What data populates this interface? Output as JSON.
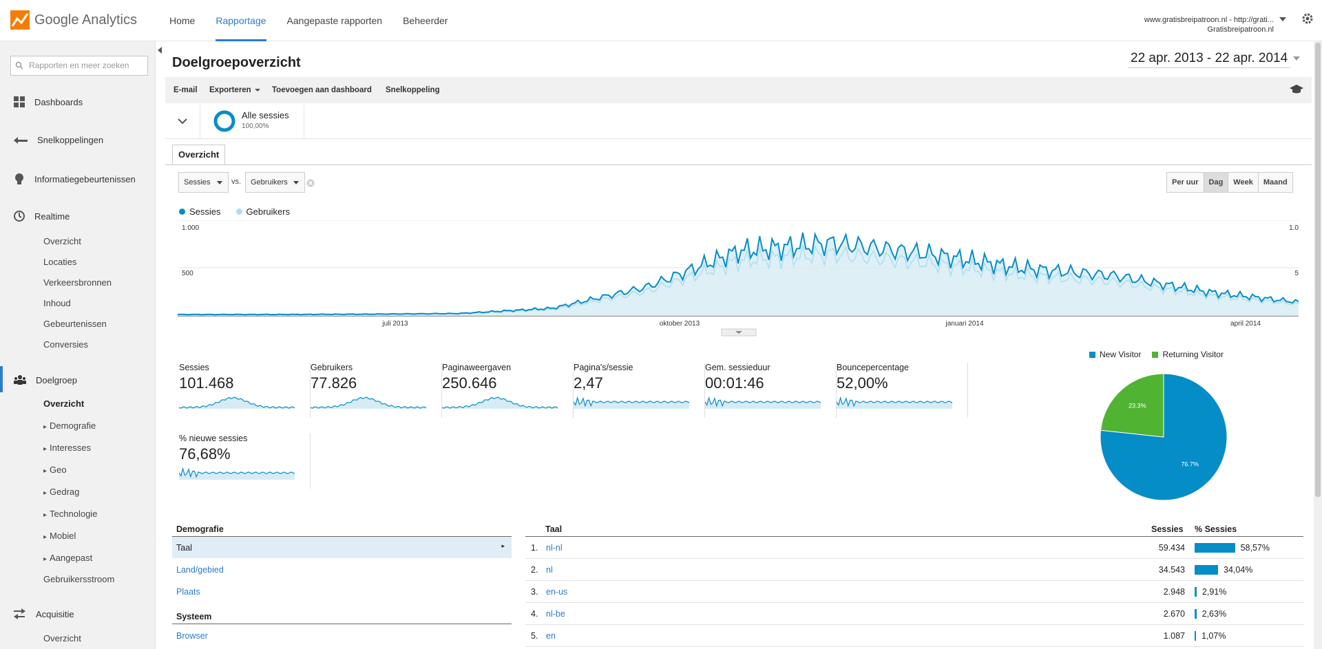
{
  "app": {
    "name": "Google Analytics"
  },
  "nav": {
    "items": [
      "Home",
      "Rapportage",
      "Aangepaste rapporten",
      "Beheerder"
    ],
    "active": "Rapportage"
  },
  "account": {
    "line1": "www.gratisbreipatroon.nl - http://grati...",
    "line2": "Gratisbreipatroon.nl"
  },
  "search": {
    "placeholder": "Rapporten en meer zoeken"
  },
  "sidebar": {
    "dashboards": "Dashboards",
    "shortcuts": "Snelkoppelingen",
    "events": "Informatiegebeurtenissen",
    "realtime": "Realtime",
    "realtime_items": [
      "Overzicht",
      "Locaties",
      "Verkeersbronnen",
      "Inhoud",
      "Gebeurtenissen",
      "Conversies"
    ],
    "audience": "Doelgroep",
    "audience_items": [
      "Overzicht",
      "Demografie",
      "Interesses",
      "Geo",
      "Gedrag",
      "Technologie",
      "Mobiel",
      "Aangepast",
      "Gebruikersstroom"
    ],
    "acquisition": "Acquisitie",
    "acquisition_items": [
      "Overzicht"
    ]
  },
  "page": {
    "title": "Doelgroepoverzicht",
    "daterange": "22 apr. 2013 - 22 apr. 2014"
  },
  "toolbar": {
    "email": "E-mail",
    "export": "Exporteren",
    "add_dashboard": "Toevoegen aan dashboard",
    "shortcut": "Snelkoppeling"
  },
  "segment": {
    "name": "Alle sessies",
    "pct": "100,00%"
  },
  "tab": {
    "overview": "Overzicht"
  },
  "compare": {
    "metric1": "Sessies",
    "vs": "vs.",
    "metric2": "Gebruikers"
  },
  "granularity": {
    "items": [
      "Per uur",
      "Dag",
      "Week",
      "Maand"
    ],
    "active": "Dag"
  },
  "chart_data": [
    {
      "type": "line",
      "series": [
        {
          "name": "Sessies",
          "color": "#058dc7"
        },
        {
          "name": "Gebruikers",
          "color": "#aadff3"
        }
      ],
      "x_ticks": [
        "juli 2013",
        "oktober 2013",
        "januari 2014",
        "april 2014"
      ],
      "y_ticks_left": [
        "1.000",
        "500"
      ],
      "y_ticks_right": [
        "1.0",
        "5"
      ],
      "x_range": [
        "2013-04-22",
        "2014-04-22"
      ],
      "ylim": [
        0,
        1000
      ],
      "sessies_monthly": [
        {
          "x": "2013-04",
          "y": 15
        },
        {
          "x": "2013-05",
          "y": 15
        },
        {
          "x": "2013-06",
          "y": 18
        },
        {
          "x": "2013-07",
          "y": 25
        },
        {
          "x": "2013-08",
          "y": 80
        },
        {
          "x": "2013-09",
          "y": 300
        },
        {
          "x": "2013-10",
          "y": 680
        },
        {
          "x": "2013-11",
          "y": 760
        },
        {
          "x": "2013-12",
          "y": 650
        },
        {
          "x": "2014-01",
          "y": 500
        },
        {
          "x": "2014-02",
          "y": 420
        },
        {
          "x": "2014-03",
          "y": 250
        },
        {
          "x": "2014-04",
          "y": 140
        }
      ]
    },
    {
      "type": "pie",
      "slices": [
        {
          "name": "New Visitor",
          "value": 76.7,
          "label": "76.7%",
          "color": "#058dc7"
        },
        {
          "name": "Returning Visitor",
          "value": 23.3,
          "label": "23.3%",
          "color": "#50b432"
        }
      ],
      "legend_position": "top"
    }
  ],
  "metrics": [
    {
      "label": "Sessies",
      "value": "101.468"
    },
    {
      "label": "Gebruikers",
      "value": "77.826"
    },
    {
      "label": "Paginaweergaven",
      "value": "250.646"
    },
    {
      "label": "Pagina's/sessie",
      "value": "2,47"
    },
    {
      "label": "Gem. sessieduur",
      "value": "00:01:46"
    },
    {
      "label": "Bouncepercentage",
      "value": "52,00%"
    },
    {
      "label": "% nieuwe sessies",
      "value": "76,68%"
    }
  ],
  "demografie": {
    "header": "Demografie",
    "items": [
      "Taal",
      "Land/gebied",
      "Plaats"
    ],
    "system_header": "Systeem",
    "system_items": [
      "Browser"
    ]
  },
  "lang_table": {
    "columns": [
      "Taal",
      "Sessies",
      "% Sessies"
    ],
    "rows": [
      {
        "rank": "1.",
        "lang": "nl-nl",
        "sessions": "59.434",
        "pct": "58,57%",
        "frac": 0.5857
      },
      {
        "rank": "2.",
        "lang": "nl",
        "sessions": "34.543",
        "pct": "34,04%",
        "frac": 0.3404
      },
      {
        "rank": "3.",
        "lang": "en-us",
        "sessions": "2.948",
        "pct": "2,91%",
        "frac": 0.0291
      },
      {
        "rank": "4.",
        "lang": "nl-be",
        "sessions": "2.670",
        "pct": "2,63%",
        "frac": 0.0263
      },
      {
        "rank": "5.",
        "lang": "en",
        "sessions": "1.087",
        "pct": "1,07%",
        "frac": 0.0107
      }
    ]
  }
}
